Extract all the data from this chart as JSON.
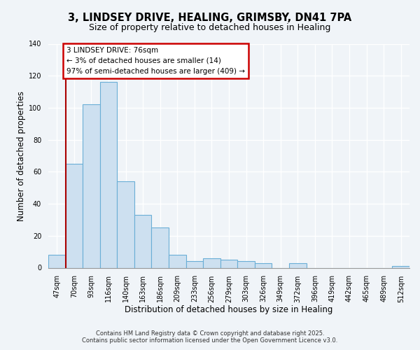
{
  "title_line1": "3, LINDSEY DRIVE, HEALING, GRIMSBY, DN41 7PA",
  "title_line2": "Size of property relative to detached houses in Healing",
  "xlabel": "Distribution of detached houses by size in Healing",
  "ylabel": "Number of detached properties",
  "bar_labels": [
    "47sqm",
    "70sqm",
    "93sqm",
    "116sqm",
    "140sqm",
    "163sqm",
    "186sqm",
    "209sqm",
    "233sqm",
    "256sqm",
    "279sqm",
    "303sqm",
    "326sqm",
    "349sqm",
    "372sqm",
    "396sqm",
    "419sqm",
    "442sqm",
    "465sqm",
    "489sqm",
    "512sqm"
  ],
  "bar_values": [
    8,
    65,
    102,
    116,
    54,
    33,
    25,
    8,
    4,
    6,
    5,
    4,
    3,
    0,
    3,
    0,
    0,
    0,
    0,
    0,
    1
  ],
  "bar_color": "#cde0f0",
  "bar_edge_color": "#6aaed6",
  "ylim": [
    0,
    140
  ],
  "yticks": [
    0,
    20,
    40,
    60,
    80,
    100,
    120,
    140
  ],
  "vline_x_idx": 1,
  "vline_color": "#aa0000",
  "annotation_text": "3 LINDSEY DRIVE: 76sqm\n← 3% of detached houses are smaller (14)\n97% of semi-detached houses are larger (409) →",
  "annotation_box_facecolor": "#ffffff",
  "annotation_box_edgecolor": "#cc0000",
  "footer_line1": "Contains HM Land Registry data © Crown copyright and database right 2025.",
  "footer_line2": "Contains public sector information licensed under the Open Government Licence v3.0.",
  "background_color": "#f0f4f8",
  "plot_bg_color": "#f0f4f8",
  "grid_color": "#ffffff",
  "title1_fontsize": 10.5,
  "title2_fontsize": 9,
  "axis_label_fontsize": 8.5,
  "tick_fontsize": 7,
  "footer_fontsize": 6,
  "annot_fontsize": 7.5
}
